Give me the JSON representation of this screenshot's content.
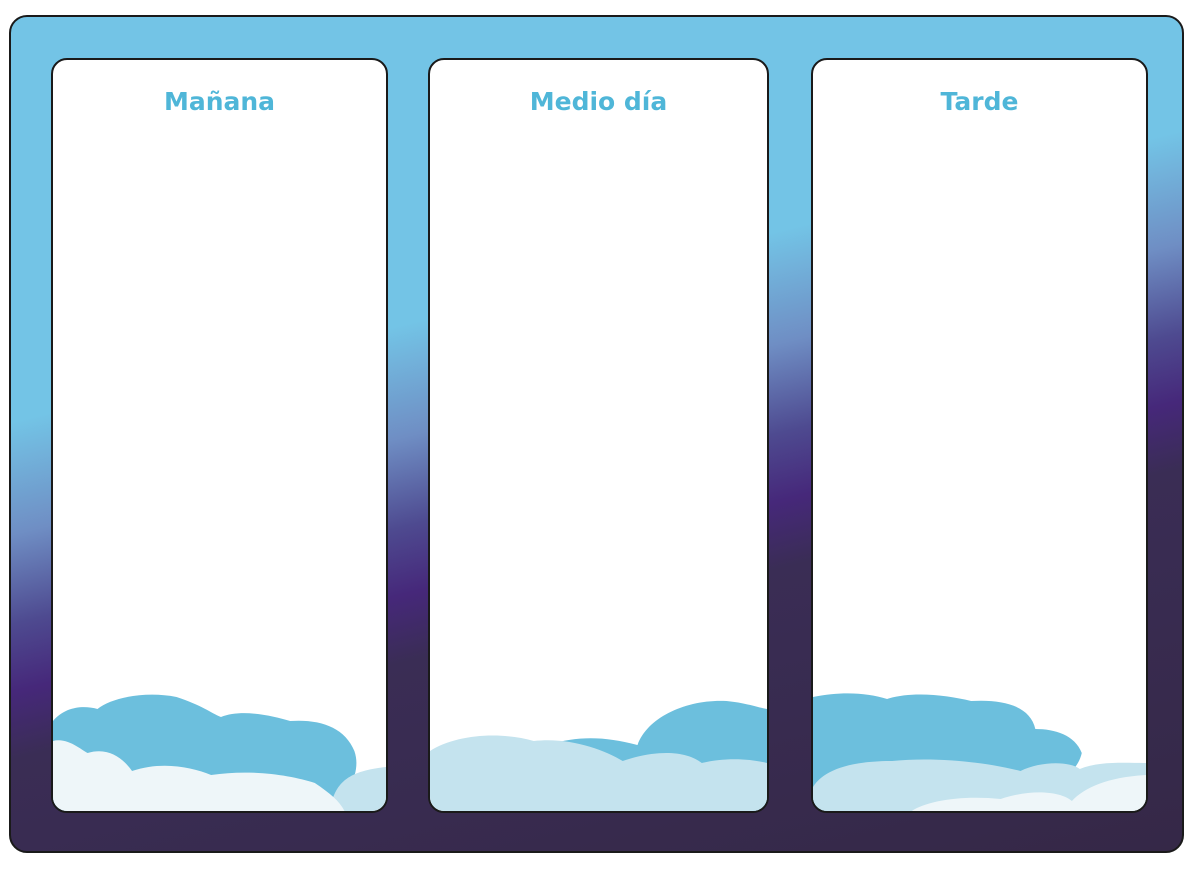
{
  "colors": {
    "sky_light": "#73c4e6",
    "sky_dark": "#352847",
    "title_blue": "#4fb6d8",
    "cloud_blue": "#6cbfdd",
    "cloud_pale": "#c4e3ee",
    "cloud_white": "#eef6f9"
  },
  "panels": [
    {
      "title": "Mañana"
    },
    {
      "title": "Medio día"
    },
    {
      "title": "Tarde"
    }
  ]
}
